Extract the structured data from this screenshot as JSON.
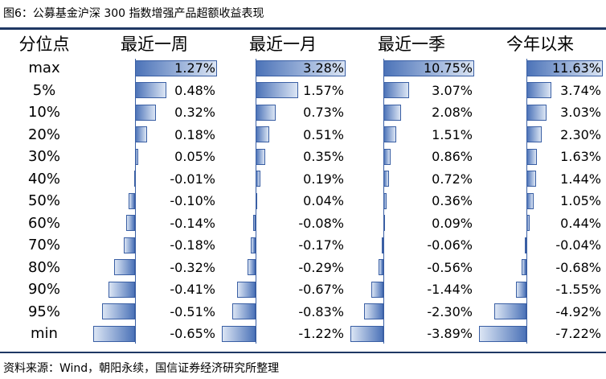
{
  "title": "图6：公募基金沪深 300 指数增强产品超额收益表现",
  "source": "资料来源：Wind，朝阳永续，国信证券经济研究所整理",
  "header": {
    "label": "分位点",
    "columns": [
      "最近一周",
      "最近一月",
      "最近一季",
      "今年以来"
    ]
  },
  "rows": [
    {
      "label": "max",
      "values": [
        "1.27%",
        "3.28%",
        "10.75%",
        "11.63%"
      ]
    },
    {
      "label": "5%",
      "values": [
        "0.48%",
        "1.57%",
        "3.07%",
        "3.74%"
      ]
    },
    {
      "label": "10%",
      "values": [
        "0.32%",
        "0.73%",
        "2.08%",
        "3.03%"
      ]
    },
    {
      "label": "20%",
      "values": [
        "0.18%",
        "0.51%",
        "1.51%",
        "2.30%"
      ]
    },
    {
      "label": "30%",
      "values": [
        "0.05%",
        "0.35%",
        "0.86%",
        "1.63%"
      ]
    },
    {
      "label": "40%",
      "values": [
        "-0.01%",
        "0.19%",
        "0.72%",
        "1.44%"
      ]
    },
    {
      "label": "50%",
      "values": [
        "-0.10%",
        "0.04%",
        "0.36%",
        "1.05%"
      ]
    },
    {
      "label": "60%",
      "values": [
        "-0.14%",
        "-0.08%",
        "0.09%",
        "0.44%"
      ]
    },
    {
      "label": "70%",
      "values": [
        "-0.18%",
        "-0.17%",
        "-0.06%",
        "-0.04%"
      ]
    },
    {
      "label": "80%",
      "values": [
        "-0.32%",
        "-0.29%",
        "-0.56%",
        "-0.68%"
      ]
    },
    {
      "label": "90%",
      "values": [
        "-0.41%",
        "-0.67%",
        "-1.44%",
        "-1.55%"
      ]
    },
    {
      "label": "95%",
      "values": [
        "-0.51%",
        "-0.83%",
        "-2.30%",
        "-4.92%"
      ]
    },
    {
      "label": "min",
      "values": [
        "-0.65%",
        "-1.22%",
        "-3.89%",
        "-7.22%"
      ]
    }
  ],
  "data_bar_values": [
    [
      1.27,
      0.48,
      0.32,
      0.18,
      0.05,
      -0.01,
      -0.1,
      -0.14,
      -0.18,
      -0.32,
      -0.41,
      -0.51,
      -0.65
    ],
    [
      3.28,
      1.57,
      0.73,
      0.51,
      0.35,
      0.19,
      0.04,
      -0.08,
      -0.17,
      -0.29,
      -0.67,
      -0.83,
      -1.22
    ],
    [
      10.75,
      3.07,
      2.08,
      1.51,
      0.86,
      0.72,
      0.36,
      0.09,
      -0.06,
      -0.56,
      -1.44,
      -2.3,
      -3.89
    ],
    [
      11.63,
      3.74,
      3.03,
      2.3,
      1.63,
      1.44,
      1.05,
      0.44,
      -0.04,
      -0.68,
      -1.55,
      -4.92,
      -7.22
    ]
  ],
  "colors": {
    "bar_border": "#3a5fa4",
    "bar_fill": "#4c73b8",
    "bar_light": "#dbe5f4",
    "rule": "#1f3864"
  }
}
